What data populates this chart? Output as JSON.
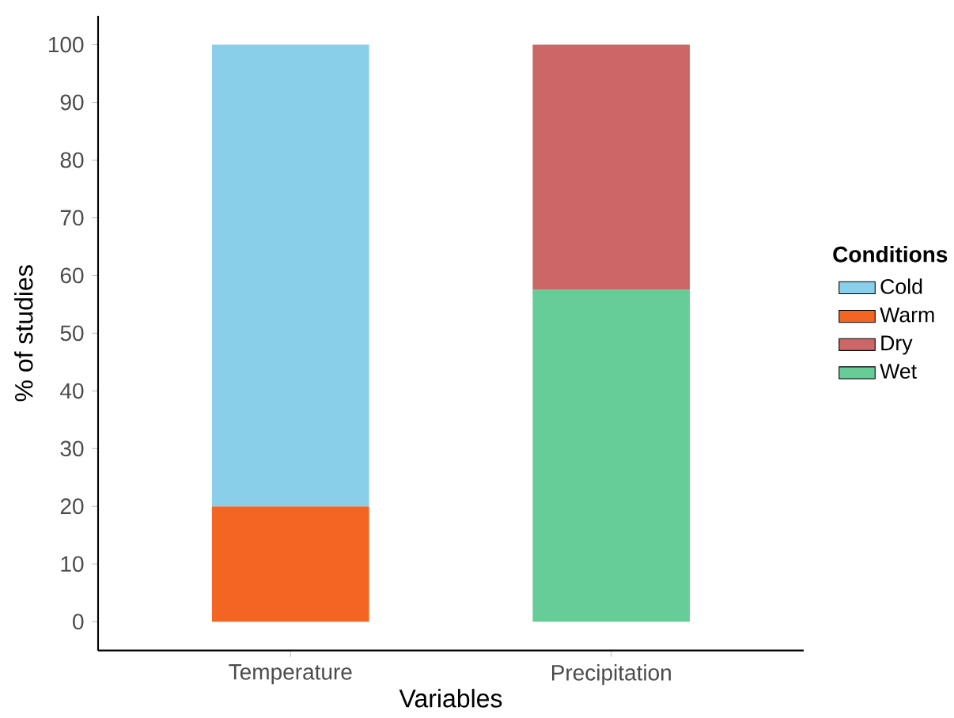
{
  "chart_data": {
    "type": "bar",
    "stacked": true,
    "xlabel": "Variables",
    "ylabel": "% of studies",
    "legend_title": "Conditions",
    "legend": "right",
    "grid": false,
    "categories": [
      "Temperature",
      "Precipitation"
    ],
    "series": [
      {
        "name": "Wet",
        "color": "#66cd99",
        "values": [
          null,
          57.5
        ]
      },
      {
        "name": "Dry",
        "color": "#cd6666",
        "values": [
          null,
          42.5
        ]
      },
      {
        "name": "Warm",
        "color": "#f26522",
        "values": [
          20,
          null
        ]
      },
      {
        "name": "Cold",
        "color": "#89cfea",
        "values": [
          80,
          null
        ]
      }
    ],
    "ylim": [
      -5,
      105
    ],
    "yticks": [
      0,
      10,
      20,
      30,
      40,
      50,
      60,
      70,
      80,
      90,
      100
    ]
  }
}
